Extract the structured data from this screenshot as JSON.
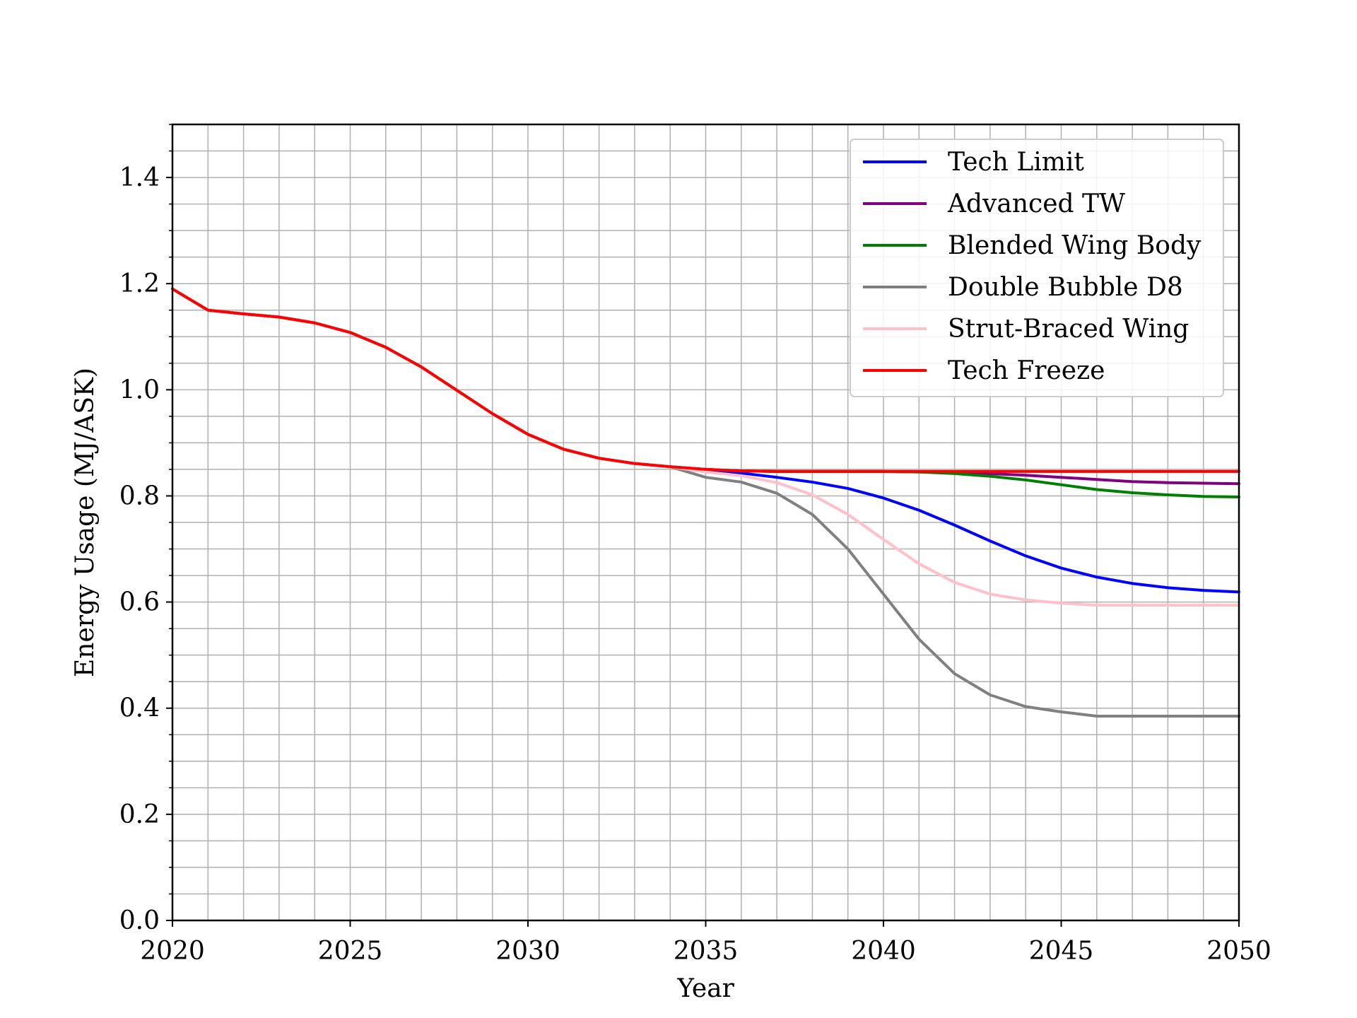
{
  "chart_data": {
    "type": "line",
    "title": "",
    "xlabel": "Year",
    "ylabel": "Energy Usage (MJ/ASK)",
    "xlim": [
      2020,
      2050
    ],
    "ylim": [
      0.0,
      1.5
    ],
    "x_ticks": [
      "2020",
      "2025",
      "2030",
      "2035",
      "2040",
      "2045",
      "2050"
    ],
    "y_ticks": [
      "0.0",
      "0.2",
      "0.4",
      "0.6",
      "0.8",
      "1.0",
      "1.2",
      "1.4"
    ],
    "grid": true,
    "legend_position": "top-right",
    "x": [
      2020,
      2021,
      2022,
      2023,
      2024,
      2025,
      2026,
      2027,
      2028,
      2029,
      2030,
      2031,
      2032,
      2033,
      2034,
      2035,
      2036,
      2037,
      2038,
      2039,
      2040,
      2041,
      2042,
      2043,
      2044,
      2045,
      2046,
      2047,
      2048,
      2049,
      2050
    ],
    "series": [
      {
        "name": "Tech Limit",
        "color": "#0000ff",
        "values": [
          1.19,
          1.15,
          1.143,
          1.137,
          1.126,
          1.108,
          1.08,
          1.043,
          0.999,
          0.955,
          0.916,
          0.888,
          0.871,
          0.861,
          0.855,
          0.85,
          0.843,
          0.835,
          0.826,
          0.814,
          0.796,
          0.773,
          0.745,
          0.715,
          0.687,
          0.664,
          0.647,
          0.635,
          0.627,
          0.622,
          0.619
        ]
      },
      {
        "name": "Advanced TW",
        "color": "#800080",
        "values": [
          1.19,
          1.15,
          1.143,
          1.137,
          1.126,
          1.108,
          1.08,
          1.043,
          0.999,
          0.955,
          0.916,
          0.888,
          0.871,
          0.861,
          0.855,
          0.85,
          0.847,
          0.846,
          0.846,
          0.846,
          0.846,
          0.845,
          0.844,
          0.842,
          0.839,
          0.835,
          0.831,
          0.827,
          0.825,
          0.824,
          0.823
        ]
      },
      {
        "name": "Blended Wing Body",
        "color": "#008000",
        "values": [
          1.19,
          1.15,
          1.143,
          1.137,
          1.126,
          1.108,
          1.08,
          1.043,
          0.999,
          0.955,
          0.916,
          0.888,
          0.871,
          0.861,
          0.855,
          0.85,
          0.847,
          0.846,
          0.846,
          0.846,
          0.846,
          0.845,
          0.842,
          0.837,
          0.83,
          0.821,
          0.812,
          0.806,
          0.802,
          0.799,
          0.798
        ]
      },
      {
        "name": "Double Bubble D8",
        "color": "#808080",
        "values": [
          1.19,
          1.15,
          1.143,
          1.137,
          1.126,
          1.108,
          1.08,
          1.043,
          0.999,
          0.955,
          0.916,
          0.888,
          0.871,
          0.861,
          0.855,
          0.835,
          0.826,
          0.805,
          0.765,
          0.7,
          0.615,
          0.53,
          0.465,
          0.425,
          0.403,
          0.393,
          0.385,
          0.385,
          0.385,
          0.385,
          0.385
        ]
      },
      {
        "name": "Strut-Braced Wing",
        "color": "#ffc0cb",
        "values": [
          1.19,
          1.15,
          1.143,
          1.137,
          1.126,
          1.108,
          1.08,
          1.043,
          0.999,
          0.955,
          0.916,
          0.888,
          0.871,
          0.861,
          0.855,
          0.845,
          0.838,
          0.825,
          0.802,
          0.765,
          0.718,
          0.672,
          0.637,
          0.615,
          0.604,
          0.598,
          0.594,
          0.594,
          0.594,
          0.594,
          0.594
        ]
      },
      {
        "name": "Tech Freeze",
        "color": "#ff0000",
        "values": [
          1.19,
          1.15,
          1.143,
          1.137,
          1.126,
          1.108,
          1.08,
          1.043,
          0.999,
          0.955,
          0.916,
          0.888,
          0.871,
          0.861,
          0.855,
          0.85,
          0.847,
          0.846,
          0.846,
          0.846,
          0.846,
          0.846,
          0.846,
          0.846,
          0.846,
          0.846,
          0.846,
          0.846,
          0.846,
          0.846,
          0.846
        ]
      }
    ]
  }
}
